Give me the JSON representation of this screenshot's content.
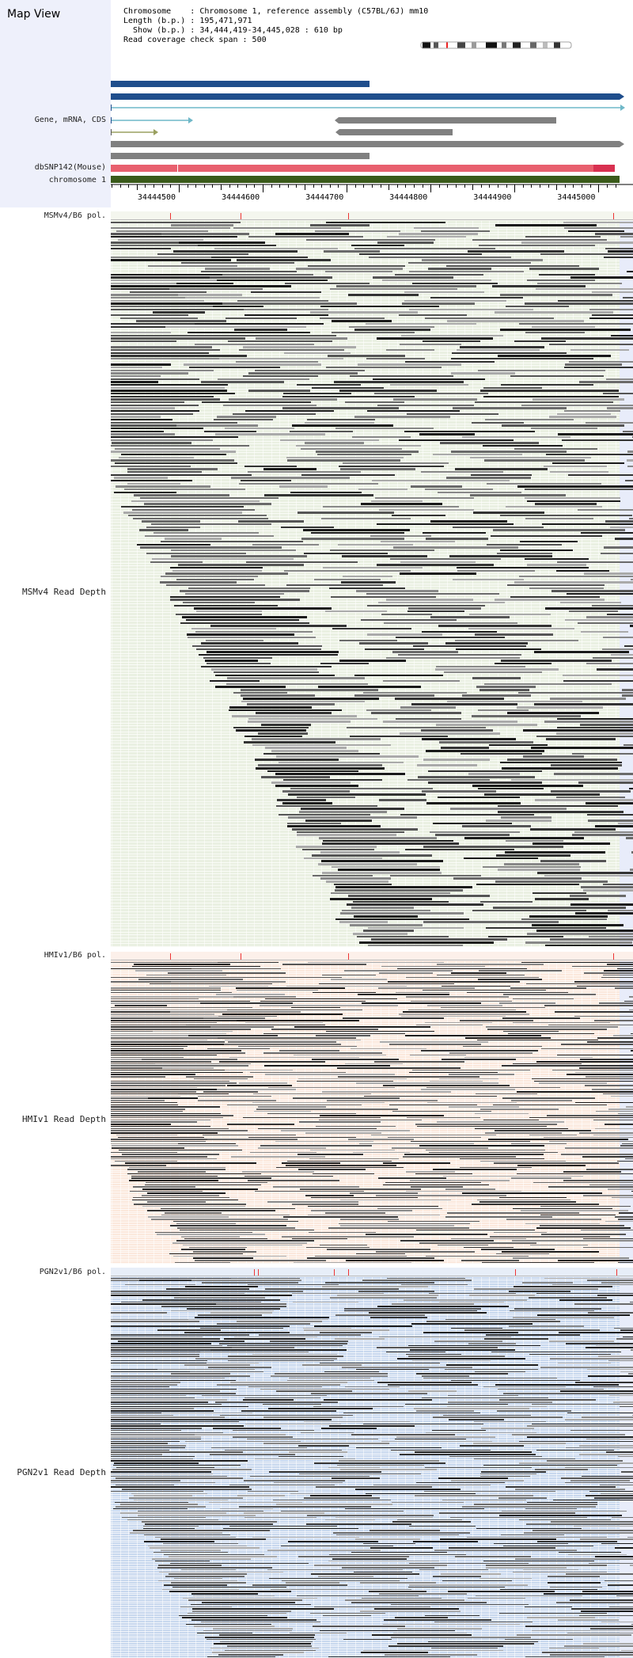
{
  "header": {
    "title": "Map View",
    "info_lines": [
      "Chromosome    : Chromosome 1, reference assembly (C57BL/6J) mm10",
      "Length (b.p.) : 195,471,971",
      "  Show (b.p.) : 34,444,419-34,445,028 : 610 bp",
      "Read coverage check span : 500"
    ]
  },
  "labels": {
    "gene": "Gene, mRNA, CDS",
    "dbsnp": "dbSNP142(Mouse)",
    "chromosome": "chromosome 1",
    "msm_pol": "MSMv4/B6 pol.",
    "msm_depth": "MSMv4 Read Depth",
    "hmi_pol": "HMIv1/B6 pol.",
    "hmi_depth": "HMIv1 Read Depth",
    "pgn_pol": "PGN2v1/B6 pol.",
    "pgn_depth": "PGN2v1 Read Depth"
  },
  "axis": {
    "start": 34444419,
    "end": 34445028,
    "ticks": [
      "34444500",
      "34444600",
      "34444700",
      "34444800",
      "34444900",
      "34445000"
    ]
  },
  "colors": {
    "gene_dark": "#1f4e8c",
    "mrna_light": "#6fb8c8",
    "cds_olive": "#9aa060",
    "gray_bar": "#808080",
    "dbsnp": "#e8606e",
    "dbsnp_dark": "#d83050",
    "chrom": "#3a5a1a",
    "msm_bg": "#eaf0e2",
    "hmi_bg": "#fbe8dc",
    "pgn_bg": "#c8d8ee"
  },
  "polymorphisms": {
    "msm": [
      34444490,
      34444574,
      34444702,
      34445018
    ],
    "hmi": [
      34444490,
      34444574,
      34444702,
      34445018
    ],
    "pgn": [
      34444590,
      34444594,
      34444685,
      34444702,
      34444901,
      34445021
    ]
  }
}
